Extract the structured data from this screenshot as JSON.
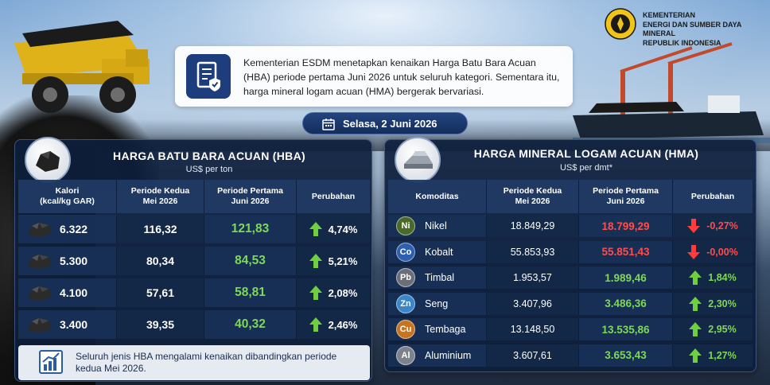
{
  "header": {
    "ministry_line1": "KEMENTERIAN",
    "ministry_line2": "ENERGI DAN SUMBER DAYA MINERAL",
    "ministry_line3": "REPUBLIK INDONESIA",
    "intro": "Kementerian ESDM menetapkan kenaikan Harga Batu Bara Acuan (HBA) periode pertama Juni 2026 untuk seluruh kategori. Sementara itu, harga mineral logam acuan (HMA) bergerak bervariasi.",
    "date": "Selasa, 2 Juni 2026"
  },
  "hba": {
    "title": "HARGA BATU BARA ACUAN (HBA)",
    "unit": "US$ per ton",
    "headers": [
      "Kalori\n(kcal/kg GAR)",
      "Periode Kedua\nMei 2026",
      "Periode Pertama\nJuni 2026",
      "Perubahan"
    ],
    "rows": [
      {
        "kalori": "6.322",
        "mei": "116,32",
        "juni": "121,83",
        "change": "4,74%",
        "direction": "up"
      },
      {
        "kalori": "5.300",
        "mei": "80,34",
        "juni": "84,53",
        "change": "5,21%",
        "direction": "up"
      },
      {
        "kalori": "4.100",
        "mei": "57,61",
        "juni": "58,81",
        "change": "2,08%",
        "direction": "up"
      },
      {
        "kalori": "3.400",
        "mei": "39,35",
        "juni": "40,32",
        "change": "2,46%",
        "direction": "up"
      }
    ],
    "note": "Seluruh jenis HBA mengalami kenaikan dibandingkan periode kedua Mei 2026."
  },
  "hma": {
    "title": "HARGA MINERAL LOGAM ACUAN (HMA)",
    "unit": "US$ per dmt*",
    "headers": [
      "Komoditas",
      "Periode Kedua\nMei 2026",
      "Periode Pertama\nJuni 2026",
      "Perubahan"
    ],
    "rows": [
      {
        "symbol": "Ni",
        "name": "Nikel",
        "mei": "18.849,29",
        "juni": "18.799,29",
        "change": "-0,27%",
        "direction": "down",
        "color": "#4a6a2a"
      },
      {
        "symbol": "Co",
        "name": "Kobalt",
        "mei": "55.853,93",
        "juni": "55.851,43",
        "change": "-0,00%",
        "direction": "down",
        "color": "#2f5fb0"
      },
      {
        "symbol": "Pb",
        "name": "Timbal",
        "mei": "1.953,57",
        "juni": "1.989,46",
        "change": "1,84%",
        "direction": "up",
        "color": "#6b6f78"
      },
      {
        "symbol": "Zn",
        "name": "Seng",
        "mei": "3.407,96",
        "juni": "3.486,36",
        "change": "2,30%",
        "direction": "up",
        "color": "#3a86c9"
      },
      {
        "symbol": "Cu",
        "name": "Tembaga",
        "mei": "13.148,50",
        "juni": "13.535,86",
        "change": "2,95%",
        "direction": "up",
        "color": "#c8731f"
      },
      {
        "symbol": "Al",
        "name": "Aluminium",
        "mei": "3.607,61",
        "juni": "3.653,43",
        "change": "1,27%",
        "direction": "up",
        "color": "#7d838c"
      }
    ]
  },
  "colors": {
    "up": "#6fcf3f",
    "down": "#ff3b3b",
    "navy": "#1d3d7c"
  }
}
